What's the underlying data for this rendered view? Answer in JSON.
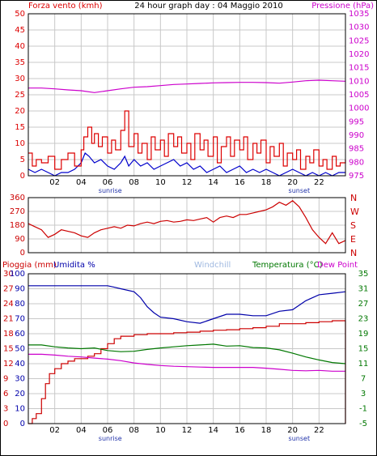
{
  "title": "24 hour graph day : 04 Maggio 2010",
  "colors": {
    "frame": "#000000",
    "grid": "#c8c8c8",
    "wind_avg": "#0000cc",
    "wind_gust": "#dd0000",
    "pressure": "#cc00cc",
    "direction": "#cc0000",
    "rain": "#cc0000",
    "humidity": "#0000aa",
    "windchill": "#9fb8e0",
    "temperature": "#007700",
    "dew_point": "#cc00cc",
    "sun_label": "#2233aa"
  },
  "chart_data": [
    {
      "type": "line",
      "panel": "wind-pressure",
      "left_axis_label": "Forza vento (kmh)",
      "right_axis_label": "Pressione (hPa)",
      "left_ticks": [
        "0",
        "5",
        "10",
        "15",
        "20",
        "25",
        "30",
        "35",
        "40",
        "45",
        "50"
      ],
      "left_range": [
        0,
        50
      ],
      "right_ticks": [
        "975",
        "980",
        "985",
        "990",
        "995",
        "1000",
        "1005",
        "1010",
        "1015",
        "1020",
        "1025",
        "1030",
        "1035"
      ],
      "right_range": [
        975,
        1035
      ],
      "x_ticks": [
        "02",
        "04",
        "06",
        "08",
        "10",
        "12",
        "14",
        "16",
        "18",
        "20",
        "22"
      ],
      "x_range": [
        0,
        24
      ],
      "annotations": [
        {
          "text": "sunrise",
          "x": 6.2
        },
        {
          "text": "sunset",
          "x": 20.5
        }
      ],
      "series": [
        {
          "key": "wind_avg",
          "axis": "left",
          "x": [
            0,
            0.5,
            1,
            1.5,
            2,
            2.5,
            3,
            3.5,
            4,
            4.3,
            4.6,
            5,
            5.5,
            6,
            6.5,
            7,
            7.3,
            7.6,
            8,
            8.5,
            9,
            9.5,
            10,
            10.5,
            11,
            11.5,
            12,
            12.5,
            13,
            13.5,
            14,
            14.5,
            15,
            15.5,
            16,
            16.5,
            17,
            17.5,
            18,
            18.5,
            19,
            19.5,
            20,
            20.5,
            21,
            21.5,
            22,
            22.5,
            23,
            23.5,
            24
          ],
          "y": [
            2,
            1,
            2,
            1,
            0,
            1,
            1,
            2,
            4,
            7,
            6,
            4,
            5,
            3,
            2,
            4,
            6,
            3,
            5,
            3,
            4,
            2,
            3,
            4,
            5,
            3,
            4,
            2,
            3,
            1,
            2,
            3,
            1,
            2,
            3,
            1,
            2,
            1,
            2,
            1,
            0,
            1,
            2,
            1,
            0,
            1,
            0,
            1,
            0,
            1,
            1
          ]
        },
        {
          "key": "wind_gust",
          "axis": "left",
          "x": [
            0,
            0.3,
            0.6,
            1,
            1.5,
            2,
            2.5,
            3,
            3.5,
            4,
            4.2,
            4.5,
            4.8,
            5,
            5.3,
            5.6,
            6,
            6.3,
            6.6,
            7,
            7.3,
            7.6,
            8,
            8.3,
            8.6,
            9,
            9.3,
            9.6,
            10,
            10.3,
            10.6,
            11,
            11.3,
            11.6,
            12,
            12.3,
            12.6,
            13,
            13.3,
            13.6,
            14,
            14.3,
            14.6,
            15,
            15.3,
            15.6,
            16,
            16.3,
            16.6,
            17,
            17.3,
            17.6,
            18,
            18.3,
            18.6,
            19,
            19.3,
            19.6,
            20,
            20.3,
            20.6,
            21,
            21.3,
            21.6,
            22,
            22.3,
            22.6,
            23,
            23.3,
            23.6,
            24
          ],
          "y": [
            7,
            3,
            5,
            4,
            6,
            2,
            5,
            7,
            3,
            8,
            12,
            15,
            10,
            13,
            9,
            12,
            7,
            11,
            8,
            14,
            20,
            9,
            13,
            7,
            10,
            5,
            12,
            8,
            11,
            6,
            13,
            9,
            12,
            7,
            10,
            5,
            13,
            8,
            11,
            6,
            12,
            4,
            9,
            12,
            6,
            11,
            8,
            12,
            5,
            10,
            7,
            11,
            4,
            9,
            6,
            10,
            3,
            7,
            5,
            8,
            2,
            6,
            4,
            8,
            3,
            5,
            2,
            6,
            3,
            4,
            5
          ]
        },
        {
          "key": "pressure",
          "axis": "right",
          "x": [
            0,
            1,
            2,
            3,
            4,
            5,
            6,
            7,
            8,
            9,
            10,
            11,
            12,
            13,
            14,
            15,
            16,
            17,
            18,
            19,
            20,
            21,
            22,
            23,
            24
          ],
          "y": [
            1007.5,
            1007.5,
            1007.2,
            1006.8,
            1006.5,
            1005.8,
            1006.5,
            1007.2,
            1007.8,
            1008,
            1008.4,
            1008.8,
            1009,
            1009.2,
            1009.4,
            1009.5,
            1009.6,
            1009.6,
            1009.5,
            1009.3,
            1009.7,
            1010.2,
            1010.4,
            1010.2,
            1010
          ]
        }
      ]
    },
    {
      "type": "line",
      "panel": "wind-direction",
      "left_ticks": [
        "0",
        "90",
        "180",
        "270",
        "360"
      ],
      "left_range": [
        0,
        360
      ],
      "right_ticks": [
        "N",
        "E",
        "S",
        "W",
        "N"
      ],
      "x_range": [
        0,
        24
      ],
      "series": [
        {
          "key": "direction",
          "axis": "left",
          "x": [
            0,
            0.5,
            1,
            1.5,
            2,
            2.5,
            3,
            3.5,
            4,
            4.5,
            5,
            5.5,
            6,
            6.5,
            7,
            7.5,
            8,
            8.5,
            9,
            9.5,
            10,
            10.5,
            11,
            11.5,
            12,
            12.5,
            13,
            13.5,
            14,
            14.5,
            15,
            15.5,
            16,
            16.5,
            17,
            17.5,
            18,
            18.5,
            19,
            19.5,
            20,
            20.5,
            21,
            21.5,
            22,
            22.5,
            23,
            23.5,
            24
          ],
          "y": [
            190,
            170,
            150,
            100,
            120,
            150,
            140,
            130,
            110,
            100,
            130,
            150,
            160,
            170,
            160,
            180,
            175,
            190,
            200,
            190,
            205,
            210,
            200,
            205,
            215,
            210,
            220,
            230,
            200,
            230,
            240,
            230,
            250,
            250,
            260,
            270,
            280,
            300,
            330,
            310,
            340,
            300,
            230,
            150,
            100,
            60,
            130,
            60,
            80
          ]
        }
      ]
    },
    {
      "type": "line",
      "panel": "rain-humidity-temperature",
      "labels": [
        "Pioggia (mm)",
        "Umidita %",
        "Windchill",
        "Temperatura (°C)",
        "Dew Point"
      ],
      "left_ticks_rain": [
        "0",
        "3",
        "6",
        "9",
        "12",
        "15",
        "18",
        "21",
        "24",
        "27",
        "30"
      ],
      "left_range_rain": [
        0,
        30
      ],
      "left_ticks_humidity": [
        "0",
        "10",
        "20",
        "30",
        "40",
        "50",
        "60",
        "70",
        "80",
        "90",
        "100"
      ],
      "left_range_humidity": [
        0,
        100
      ],
      "right_ticks": [
        "-5",
        "-1",
        "3",
        "7",
        "11",
        "15",
        "19",
        "23",
        "27",
        "31",
        "35"
      ],
      "right_range": [
        -5,
        35
      ],
      "x_ticks": [
        "02",
        "04",
        "06",
        "08",
        "10",
        "12",
        "14",
        "16",
        "18",
        "20",
        "22"
      ],
      "x_range": [
        0,
        24
      ],
      "annotations": [
        {
          "text": "sunrise",
          "x": 6.2
        },
        {
          "text": "sunset",
          "x": 20.5
        }
      ],
      "series": [
        {
          "key": "rain",
          "axis": "rain",
          "x": [
            0,
            0.3,
            0.6,
            1,
            1.3,
            1.6,
            2,
            2.5,
            3,
            3.5,
            4,
            4.5,
            5,
            5.5,
            6,
            6.5,
            7,
            8,
            9,
            10,
            11,
            12,
            13,
            14,
            15,
            16,
            17,
            18,
            19,
            20,
            21,
            22,
            23,
            23.9,
            24
          ],
          "y": [
            0,
            1,
            2,
            5,
            8,
            10,
            11,
            12,
            12.5,
            13,
            13,
            13.5,
            14,
            15,
            16,
            17,
            17.5,
            17.8,
            18,
            18,
            18.2,
            18.3,
            18.5,
            18.7,
            18.8,
            19,
            19.2,
            19.5,
            20,
            20,
            20.2,
            20.4,
            20.6,
            20.6,
            0
          ]
        },
        {
          "key": "humidity",
          "axis": "humidity",
          "x": [
            0,
            1,
            2,
            3,
            4,
            5,
            6,
            6.5,
            7,
            8,
            8.5,
            9,
            9.5,
            10,
            11,
            12,
            13,
            14,
            15,
            16,
            17,
            18,
            19,
            20,
            21,
            22,
            23,
            24
          ],
          "y": [
            92,
            92,
            92,
            92,
            92,
            92,
            92,
            91,
            90,
            88,
            84,
            78,
            74,
            71,
            70,
            68,
            67,
            70,
            73,
            73,
            72,
            72,
            75,
            76,
            82,
            86,
            87,
            88
          ]
        },
        {
          "key": "temperature",
          "axis": "right",
          "x": [
            0,
            1,
            2,
            3,
            4,
            5,
            6,
            7,
            8,
            9,
            10,
            11,
            12,
            13,
            14,
            15,
            16,
            17,
            18,
            19,
            20,
            21,
            22,
            23,
            24
          ],
          "y": [
            16,
            16,
            15.5,
            15.2,
            15,
            15.2,
            14.5,
            14.2,
            14.3,
            14.8,
            15.2,
            15.5,
            15.8,
            16,
            16.2,
            15.7,
            15.8,
            15.3,
            15.2,
            14.7,
            13.8,
            12.8,
            12,
            11.3,
            11
          ]
        },
        {
          "key": "dew_point",
          "axis": "right",
          "x": [
            0,
            1,
            2,
            3,
            4,
            5,
            6,
            7,
            8,
            9,
            10,
            11,
            12,
            13,
            14,
            15,
            16,
            17,
            18,
            19,
            20,
            21,
            22,
            23,
            24
          ],
          "y": [
            13.5,
            13.5,
            13.3,
            13,
            12.8,
            12.5,
            12.2,
            11.8,
            11.2,
            10.8,
            10.5,
            10.3,
            10.2,
            10.1,
            10,
            10,
            10,
            10,
            9.8,
            9.5,
            9.2,
            9.1,
            9.2,
            9,
            9
          ]
        }
      ]
    }
  ]
}
